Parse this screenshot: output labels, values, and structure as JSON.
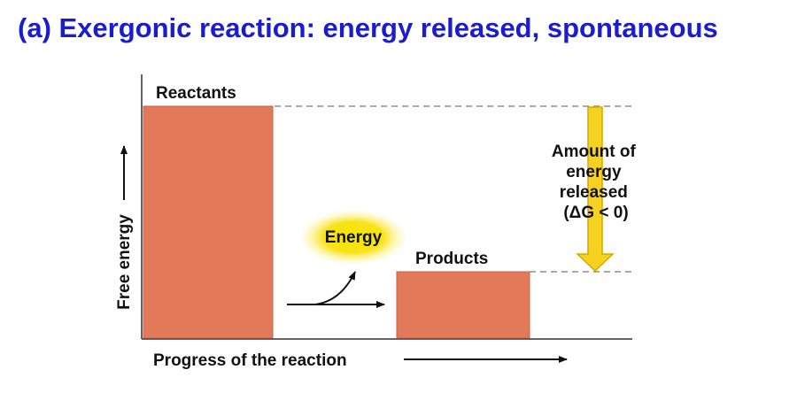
{
  "title": "(a) Exergonic reaction: energy released, spontaneous",
  "labels": {
    "reactants": "Reactants",
    "products": "Products",
    "energy": "Energy",
    "released_lines": [
      "Amount of",
      "energy",
      "released",
      "(ΔG < 0)"
    ],
    "y_axis": "Free energy",
    "x_axis": "Progress of the reaction"
  },
  "colors": {
    "title": "#1c1ccf",
    "bar": "#e27a5a",
    "arrow_fill": "#f4d21f",
    "glow": "#f6e400"
  }
}
